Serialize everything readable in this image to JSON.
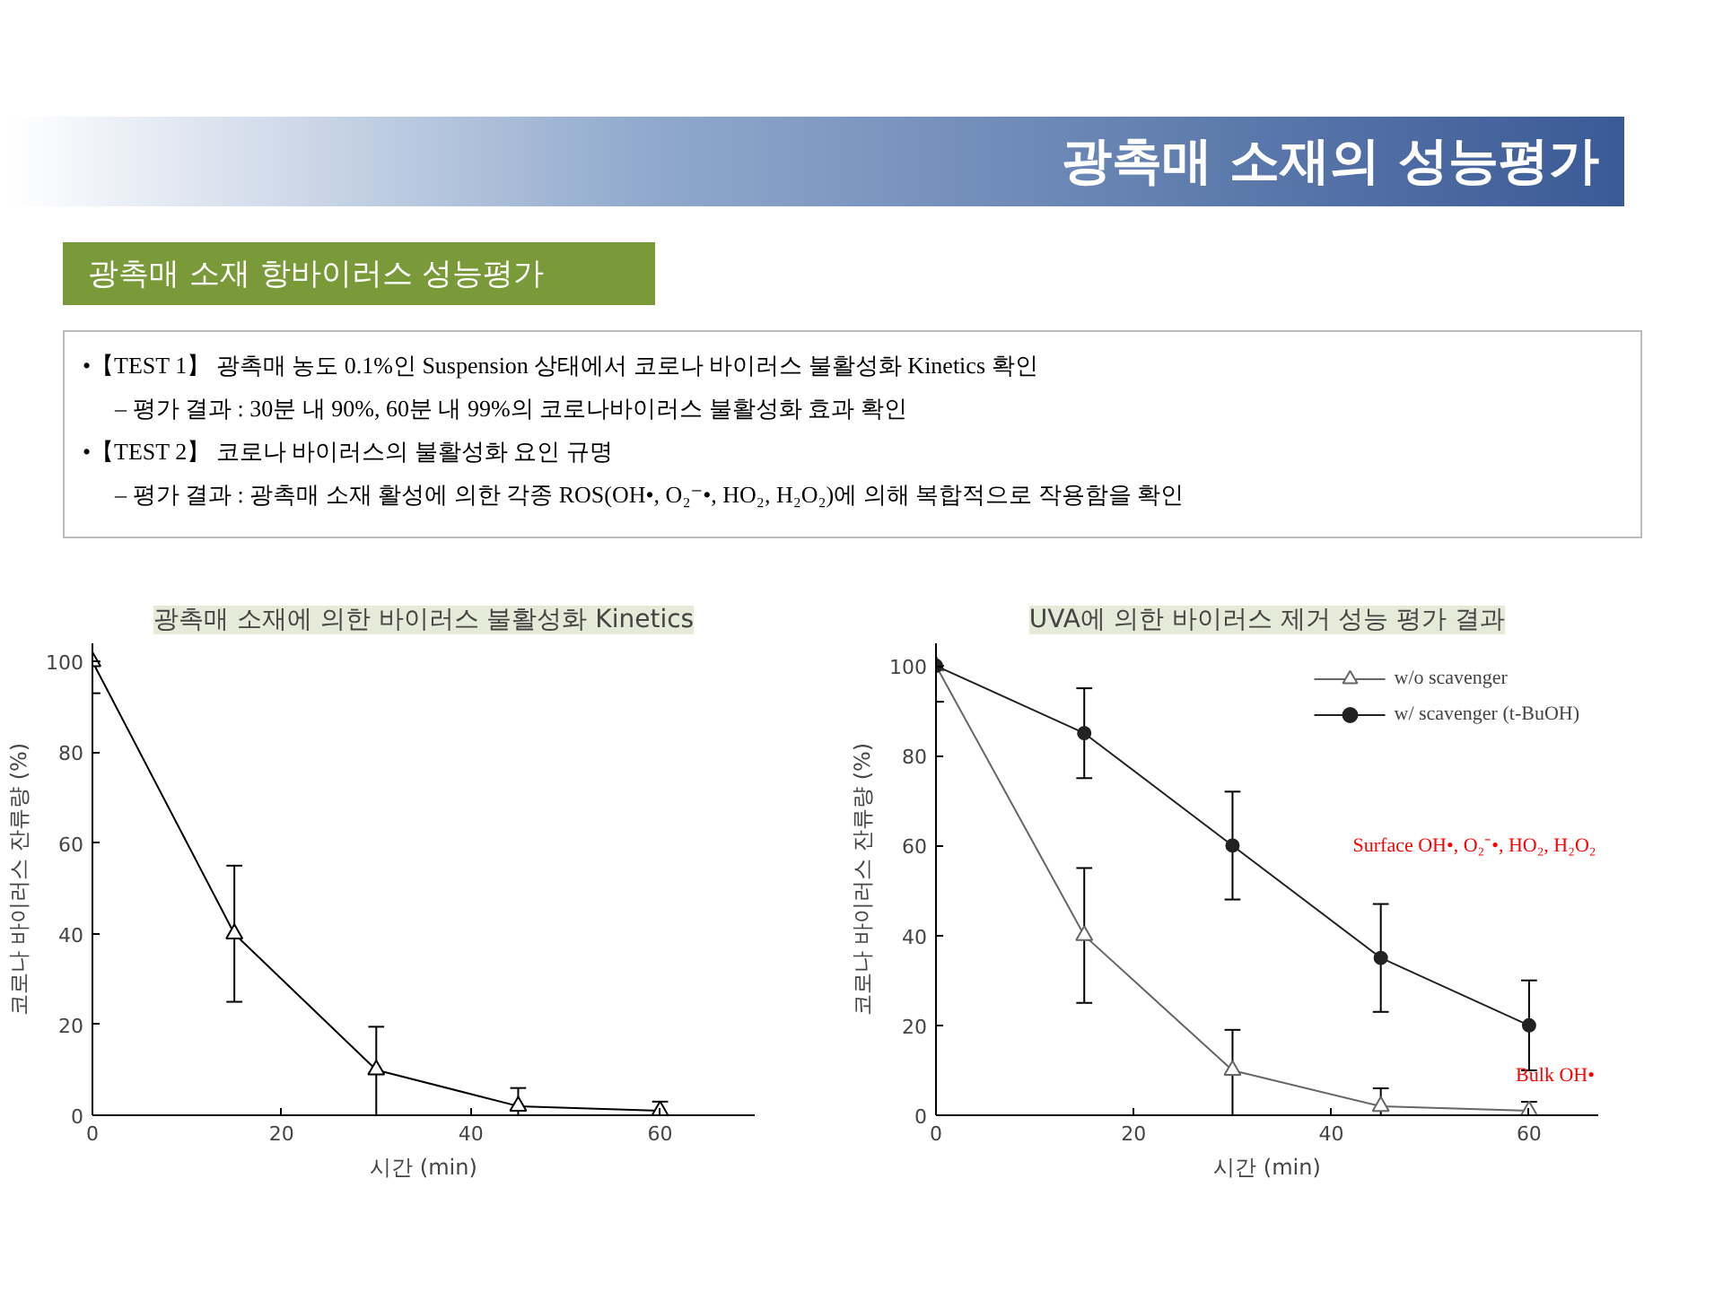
{
  "chart_data": [
    {
      "type": "line",
      "title": "광촉매 소재에 의한 바이러스 불활성화 Kinetics",
      "xlabel": "시간 (min)",
      "ylabel": "코로나 바이러스 잔류량 (%)",
      "annotations": [
        "광촉매 소재의 성능평가",
        "광촉매 소재 항바이러스 성능평가",
        "•【TEST 1】 광촉매 농도 0.1%인 Suspension 상태에서 코로나 바이러스 불활성화 Kinetics 확인",
        "– 평가 결과 : 30분 내 90%, 60분 내 99%의 코로나바이러스 불활성화 효과 확인",
        "•【TEST 2】 코로나 바이러스의 불활성화 요인 규명",
        "– 평가 결과 : 광촉매 소재 활성에 의한 각종 ROS(OH•, O₂⁻•, HO₂, H₂O₂)에 의해 복합적으로 작용함을 확인"
      ],
      "x": [
        0,
        15,
        30,
        45,
        60
      ],
      "series": [
        {
          "color": "#000000",
          "marker": "triangle",
          "values": [
            100,
            40,
            10,
            2,
            1
          ],
          "errors": [
            [
              93,
              100
            ],
            [
              25,
              55
            ],
            [
              0,
              19.5
            ],
            [
              0,
              6
            ],
            [
              0,
              3
            ]
          ]
        }
      ],
      "xlim": [
        0,
        70
      ],
      "ylim": [
        0,
        104
      ],
      "xticks": [
        0,
        20,
        40,
        60
      ],
      "yticks": [
        0,
        20,
        40,
        60,
        80,
        100
      ],
      "grid": false,
      "legend": false
    },
    {
      "type": "line",
      "title": "UVA에 의한 바이러스 제거 성능 평가 결과",
      "xlabel": "시간 (min)",
      "ylabel": "코로나 바이러스 잔류량 (%)",
      "annotations": [
        "Surface OH•, O₂⁻•, HO₂, H₂O₂",
        "Bulk OH•"
      ],
      "x": [
        0,
        15,
        30,
        45,
        60
      ],
      "series": [
        {
          "name": "w/o scavenger",
          "color": "#666666",
          "marker": "triangle",
          "values": [
            100,
            40,
            10,
            2,
            1
          ],
          "errors": [
            [
              92,
              100
            ],
            [
              25,
              55
            ],
            [
              0,
              19
            ],
            [
              0,
              6
            ],
            [
              0,
              3
            ]
          ]
        },
        {
          "name": "w/ scavenger (t-BuOH)",
          "color": "#222222",
          "marker": "circle",
          "values": [
            100,
            85,
            60,
            35,
            20
          ],
          "errors": [
            null,
            [
              75,
              95
            ],
            [
              48,
              72
            ],
            [
              23,
              47
            ],
            [
              10,
              30
            ]
          ]
        }
      ],
      "xlim": [
        0,
        67
      ],
      "ylim": [
        0,
        105
      ],
      "xticks": [
        0,
        20,
        40,
        60
      ],
      "yticks": [
        0,
        20,
        40,
        60,
        80,
        100
      ],
      "grid": false,
      "legend": "top right"
    }
  ]
}
